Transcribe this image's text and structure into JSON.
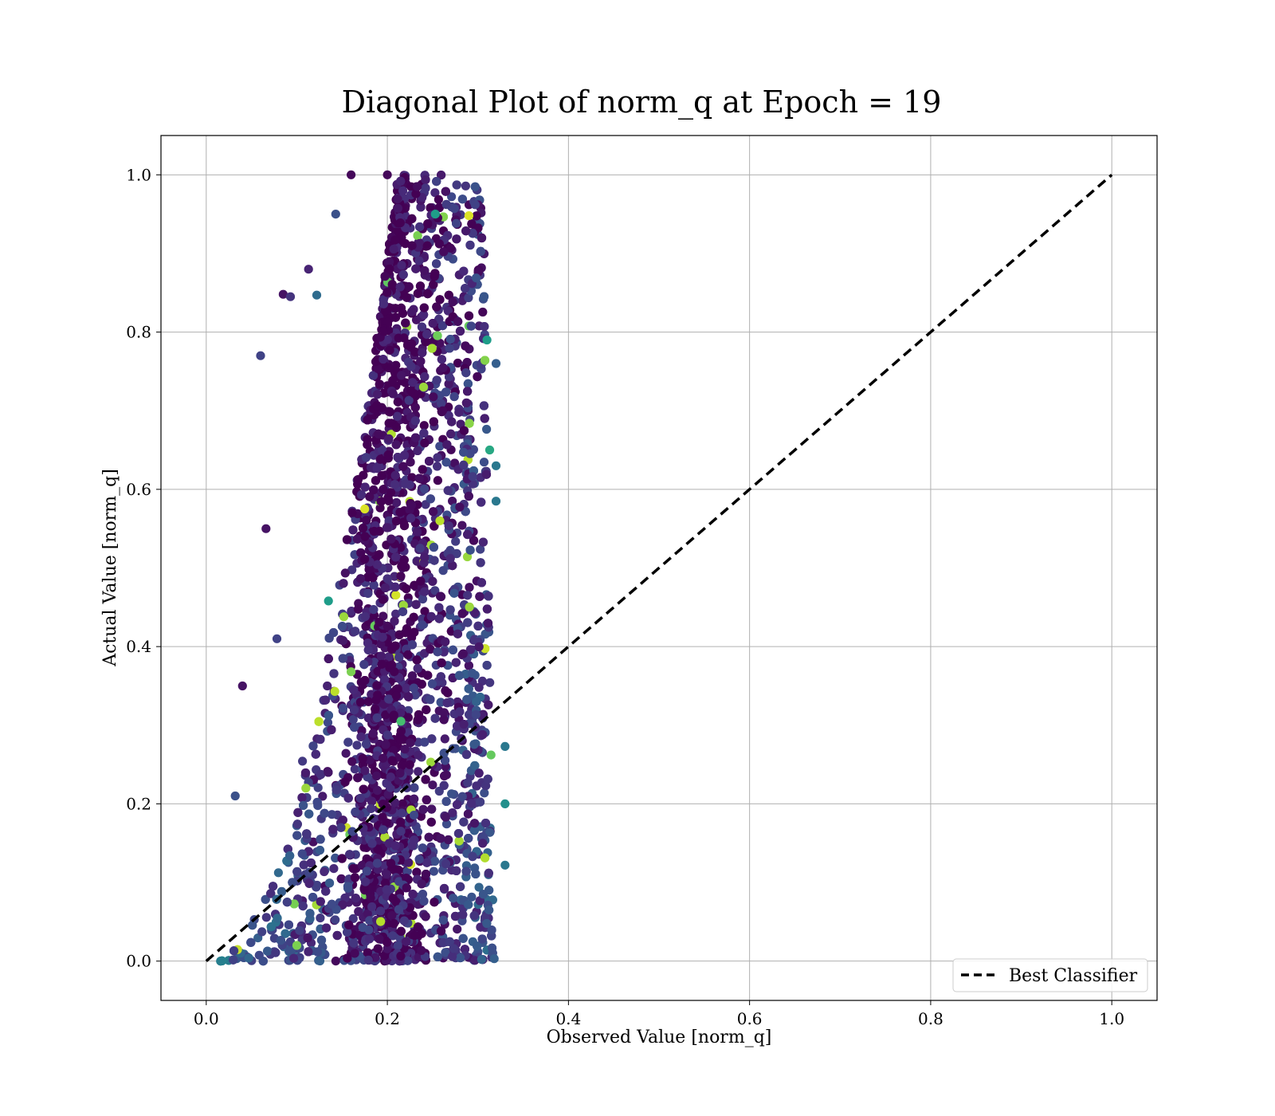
{
  "chart_data": {
    "type": "scatter",
    "title": "Diagonal Plot of norm_q at Epoch = 19",
    "xlabel": "Observed Value [norm_q]",
    "ylabel": "Actual Value [norm_q]",
    "xlim": [
      -0.05,
      1.05
    ],
    "ylim": [
      -0.05,
      1.05
    ],
    "xticks": [
      "0.0",
      "0.2",
      "0.4",
      "0.6",
      "0.8",
      "1.0"
    ],
    "yticks": [
      "0.0",
      "0.2",
      "0.4",
      "0.6",
      "0.8",
      "1.0"
    ],
    "xtick_values": [
      0.0,
      0.2,
      0.4,
      0.6,
      0.8,
      1.0
    ],
    "ytick_values": [
      0.0,
      0.2,
      0.4,
      0.6,
      0.8,
      1.0
    ],
    "grid": true,
    "colormap": "viridis",
    "legend_position": "lower-right",
    "series": [
      {
        "name": "Best Classifier",
        "type": "line",
        "style": "dashed",
        "color": "#000000",
        "x": [
          0.0,
          1.0
        ],
        "y": [
          0.0,
          1.0
        ]
      }
    ],
    "scatter_points": [
      [
        0.16,
        1.0,
        0.02
      ],
      [
        0.2,
        1.0,
        0.02
      ],
      [
        0.233,
        0.985,
        0.03
      ],
      [
        0.29,
        0.948,
        0.95
      ],
      [
        0.253,
        0.95,
        0.55
      ],
      [
        0.297,
        0.962,
        0.2
      ],
      [
        0.143,
        0.95,
        0.25
      ],
      [
        0.06,
        0.77,
        0.2
      ],
      [
        0.085,
        0.848,
        0.05
      ],
      [
        0.113,
        0.88,
        0.1
      ],
      [
        0.175,
        0.575,
        0.95
      ],
      [
        0.32,
        0.76,
        0.3
      ],
      [
        0.31,
        0.79,
        0.55
      ],
      [
        0.313,
        0.65,
        0.6
      ],
      [
        0.32,
        0.63,
        0.4
      ],
      [
        0.32,
        0.585,
        0.4
      ],
      [
        0.122,
        0.847,
        0.35
      ],
      [
        0.093,
        0.845,
        0.15
      ],
      [
        0.04,
        0.35,
        0.05
      ],
      [
        0.032,
        0.21,
        0.25
      ],
      [
        0.066,
        0.55,
        0.05
      ],
      [
        0.078,
        0.41,
        0.2
      ],
      [
        0.248,
        0.253,
        0.85
      ],
      [
        0.16,
        0.368,
        0.8
      ],
      [
        0.142,
        0.343,
        0.9
      ],
      [
        0.33,
        0.273,
        0.4
      ],
      [
        0.33,
        0.2,
        0.5
      ],
      [
        0.33,
        0.122,
        0.4
      ],
      [
        0.318,
        0.003,
        0.3
      ],
      [
        0.258,
        0.56,
        0.9
      ],
      [
        0.24,
        0.73,
        0.85
      ],
      [
        0.135,
        0.458,
        0.55
      ],
      [
        0.11,
        0.22,
        0.85
      ],
      [
        0.1,
        0.02,
        0.8
      ],
      [
        0.152,
        0.438,
        0.85
      ],
      [
        0.215,
        0.305,
        0.7
      ]
    ]
  }
}
